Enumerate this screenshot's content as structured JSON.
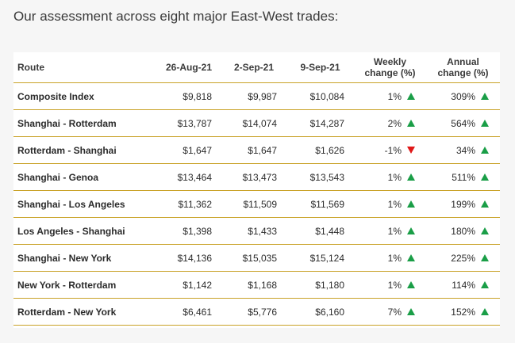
{
  "heading": "Our assessment across eight major East-West trades:",
  "colors": {
    "divider": "#c9a227",
    "up": "#1a9e47",
    "down": "#e01818"
  },
  "table": {
    "headers": {
      "route": "Route",
      "d1": "26-Aug-21",
      "d2": "2-Sep-21",
      "d3": "9-Sep-21",
      "weekly_line1": "Weekly",
      "weekly_line2": "change (%)",
      "annual_line1": "Annual",
      "annual_line2": "change (%)"
    },
    "rows": [
      {
        "route": "Composite Index",
        "d1": "$9,818",
        "d2": "$9,987",
        "d3": "$10,084",
        "weekly": "1%",
        "weekly_dir": "up-arrow-icon",
        "annual": "309%",
        "annual_dir": "up-arrow-icon"
      },
      {
        "route": "Shanghai - Rotterdam",
        "d1": "$13,787",
        "d2": "$14,074",
        "d3": "$14,287",
        "weekly": "2%",
        "weekly_dir": "up-arrow-icon",
        "annual": "564%",
        "annual_dir": "up-arrow-icon"
      },
      {
        "route": "Rotterdam - Shanghai",
        "d1": "$1,647",
        "d2": "$1,647",
        "d3": "$1,626",
        "weekly": "-1%",
        "weekly_dir": "down-arrow-icon",
        "annual": "34%",
        "annual_dir": "up-arrow-icon"
      },
      {
        "route": "Shanghai - Genoa",
        "d1": "$13,464",
        "d2": "$13,473",
        "d3": "$13,543",
        "weekly": "1%",
        "weekly_dir": "up-arrow-icon",
        "annual": "511%",
        "annual_dir": "up-arrow-icon"
      },
      {
        "route": "Shanghai - Los Angeles",
        "d1": "$11,362",
        "d2": "$11,509",
        "d3": "$11,569",
        "weekly": "1%",
        "weekly_dir": "up-arrow-icon",
        "annual": "199%",
        "annual_dir": "up-arrow-icon"
      },
      {
        "route": "Los Angeles - Shanghai",
        "d1": "$1,398",
        "d2": "$1,433",
        "d3": "$1,448",
        "weekly": "1%",
        "weekly_dir": "up-arrow-icon",
        "annual": "180%",
        "annual_dir": "up-arrow-icon"
      },
      {
        "route": "Shanghai - New York",
        "d1": "$14,136",
        "d2": "$15,035",
        "d3": "$15,124",
        "weekly": "1%",
        "weekly_dir": "up-arrow-icon",
        "annual": "225%",
        "annual_dir": "up-arrow-icon"
      },
      {
        "route": "New York - Rotterdam",
        "d1": "$1,142",
        "d2": "$1,168",
        "d3": "$1,180",
        "weekly": "1%",
        "weekly_dir": "up-arrow-icon",
        "annual": "114%",
        "annual_dir": "up-arrow-icon"
      },
      {
        "route": "Rotterdam - New York",
        "d1": "$6,461",
        "d2": "$5,776",
        "d3": "$6,160",
        "weekly": "7%",
        "weekly_dir": "up-arrow-icon",
        "annual": "152%",
        "annual_dir": "up-arrow-icon"
      }
    ]
  }
}
